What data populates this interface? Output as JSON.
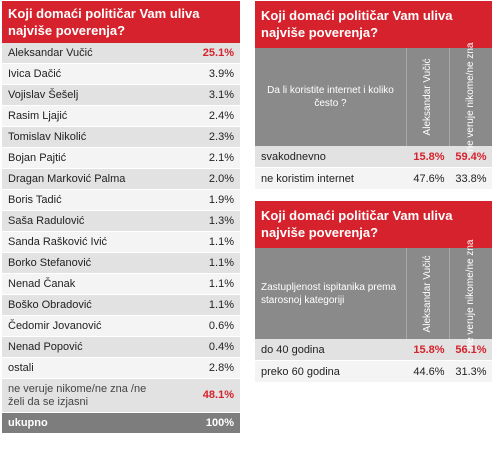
{
  "chart_data": [
    {
      "type": "table",
      "title": "Koji domaći političar Vam uliva najviše poverenja?",
      "rows": [
        {
          "name": "Aleksandar Vučić",
          "value": "25.1%"
        },
        {
          "name": "Ivica Dačić",
          "value": "3.9%"
        },
        {
          "name": "Vojislav Šešelj",
          "value": "3.1%"
        },
        {
          "name": "Rasim Ljajić",
          "value": "2.4%"
        },
        {
          "name": "Tomislav Nikolić",
          "value": "2.3%"
        },
        {
          "name": "Bojan Pajtić",
          "value": "2.1%"
        },
        {
          "name": "Dragan Marković Palma",
          "value": "2.0%"
        },
        {
          "name": "Boris Tadić",
          "value": "1.9%"
        },
        {
          "name": "Saša Radulović",
          "value": "1.3%"
        },
        {
          "name": "Sanda Rašković Ivić",
          "value": "1.1%"
        },
        {
          "name": "Borko Stefanović",
          "value": "1.1%"
        },
        {
          "name": "Nenad Čanak",
          "value": "1.1%"
        },
        {
          "name": "Boško Obradović",
          "value": "1.1%"
        },
        {
          "name": "Čedomir Jovanović",
          "value": "0.6%"
        },
        {
          "name": "Nenad Popović",
          "value": "0.4%"
        },
        {
          "name": "ostali",
          "value": "2.8%"
        },
        {
          "name": "ne veruje nikome/ne zna /ne želi da se izjasni",
          "value": "48.1%"
        },
        {
          "name": "ukupno",
          "value": "100%"
        }
      ]
    },
    {
      "type": "table",
      "title": "Koji domaći političar  Vam uliva najviše poverenja?",
      "question": "Da li koristite internet i koliko često ?",
      "columns": [
        "Aleksandar Vučić",
        "ne veruje nikome/ne zna"
      ],
      "rows": [
        {
          "label": "svakodnevno",
          "values": [
            "15.8%",
            "59.4%"
          ]
        },
        {
          "label": "ne koristim internet",
          "values": [
            "47.6%",
            "33.8%"
          ]
        }
      ]
    },
    {
      "type": "table",
      "title": "Koji domaći političar  Vam uliva najviše poverenja?",
      "question": "Zastupljenost ispitanika prema starosnoj kategoriji",
      "columns": [
        "Aleksandar Vučić",
        "ne veruje nikome/ne zna"
      ],
      "rows": [
        {
          "label": "do 40 godina",
          "values": [
            "15.8%",
            "56.1%"
          ]
        },
        {
          "label": "preko 60 godina",
          "values": [
            "44.6%",
            "31.3%"
          ]
        }
      ]
    }
  ]
}
